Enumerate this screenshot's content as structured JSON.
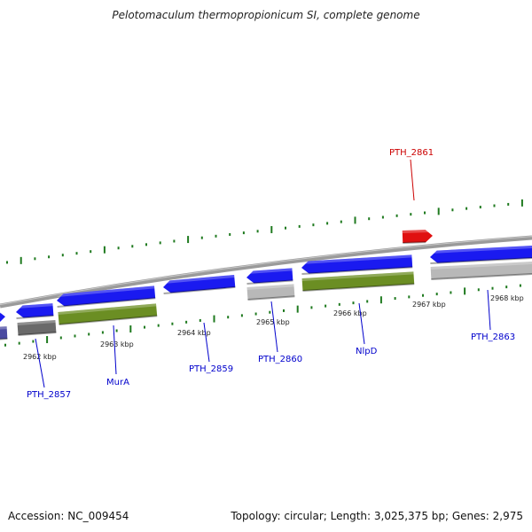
{
  "header": {
    "title": "Pelotomaculum thermopropionicum SI, complete genome"
  },
  "footer": {
    "accession": "Accession: NC_009454",
    "summary": "Topology: circular; Length: 3,025,375 bp; Genes: 2,975"
  },
  "colors": {
    "backbone": "#8a8a8a",
    "gene_forward": "#1a1af0",
    "gene_selected": "#e01010",
    "gene_gray": "#b8b8b8",
    "gene_green": "#6b8e23",
    "tick": "#1f7a1f",
    "label_default": "#0000cc",
    "label_selected": "#cc0000"
  },
  "scale": {
    "ticks": [
      {
        "label": "2962 kbp"
      },
      {
        "label": "2963 kbp"
      },
      {
        "label": "2964 kbp"
      },
      {
        "label": "2965 kbp"
      },
      {
        "label": "2966 kbp"
      },
      {
        "label": "2967 kbp"
      },
      {
        "label": "2968 kbp"
      }
    ]
  },
  "genes": [
    {
      "label": "PTH_2857"
    },
    {
      "label": "MurA"
    },
    {
      "label": "PTH_2859"
    },
    {
      "label": "PTH_2860"
    },
    {
      "label": "NlpD"
    },
    {
      "label": "PTH_2861",
      "selected": true
    },
    {
      "label": "PTH_2863"
    }
  ]
}
